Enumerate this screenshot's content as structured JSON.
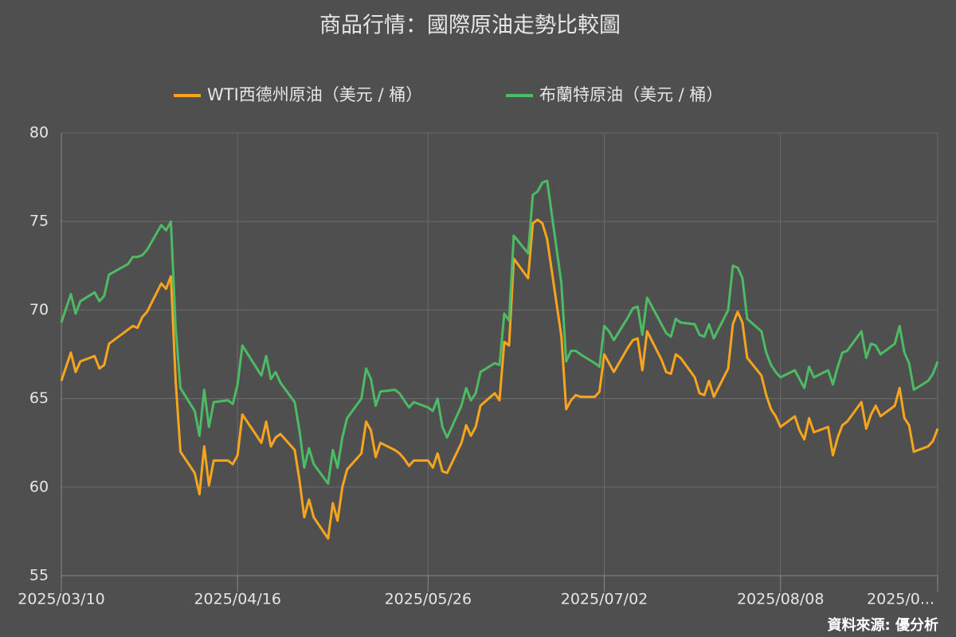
{
  "chart_data": {
    "type": "line",
    "title": "商品行情：國際原油走勢比較圖",
    "source": "資料來源: 優分析",
    "x": [
      "2025/03/10",
      "2025/03/12",
      "2025/03/13",
      "2025/03/14",
      "2025/03/17",
      "2025/03/18",
      "2025/03/19",
      "2025/03/20",
      "2025/03/24",
      "2025/03/25",
      "2025/03/26",
      "2025/03/27",
      "2025/03/28",
      "2025/03/31",
      "2025/04/01",
      "2025/04/02",
      "2025/04/03",
      "2025/04/04",
      "2025/04/07",
      "2025/04/08",
      "2025/04/09",
      "2025/04/10",
      "2025/04/11",
      "2025/04/14",
      "2025/04/15",
      "2025/04/16",
      "2025/04/17",
      "2025/04/21",
      "2025/04/22",
      "2025/04/23",
      "2025/04/24",
      "2025/04/25",
      "2025/04/28",
      "2025/04/29",
      "2025/04/30",
      "2025/05/01",
      "2025/05/02",
      "2025/05/05",
      "2025/05/06",
      "2025/05/07",
      "2025/05/08",
      "2025/05/09",
      "2025/05/12",
      "2025/05/13",
      "2025/05/14",
      "2025/05/15",
      "2025/05/16",
      "2025/05/19",
      "2025/05/20",
      "2025/05/21",
      "2025/05/22",
      "2025/05/23",
      "2025/05/26",
      "2025/05/27",
      "2025/05/28",
      "2025/05/29",
      "2025/05/30",
      "2025/06/02",
      "2025/06/03",
      "2025/06/04",
      "2025/06/05",
      "2025/06/06",
      "2025/06/09",
      "2025/06/10",
      "2025/06/11",
      "2025/06/12",
      "2025/06/13",
      "2025/06/16",
      "2025/06/17",
      "2025/06/18",
      "2025/06/19",
      "2025/06/20",
      "2025/06/23",
      "2025/06/24",
      "2025/06/25",
      "2025/06/26",
      "2025/06/27",
      "2025/06/30",
      "2025/07/01",
      "2025/07/02",
      "2025/07/03",
      "2025/07/04",
      "2025/07/07",
      "2025/07/08",
      "2025/07/09",
      "2025/07/10",
      "2025/07/11",
      "2025/07/14",
      "2025/07/15",
      "2025/07/16",
      "2025/07/17",
      "2025/07/18",
      "2025/07/21",
      "2025/07/22",
      "2025/07/23",
      "2025/07/24",
      "2025/07/25",
      "2025/07/28",
      "2025/07/29",
      "2025/07/30",
      "2025/07/31",
      "2025/08/01",
      "2025/08/04",
      "2025/08/05",
      "2025/08/06",
      "2025/08/07",
      "2025/08/08",
      "2025/08/11",
      "2025/08/12",
      "2025/08/13",
      "2025/08/14",
      "2025/08/15",
      "2025/08/18",
      "2025/08/19",
      "2025/08/20",
      "2025/08/21",
      "2025/08/22",
      "2025/08/25",
      "2025/08/26",
      "2025/08/27",
      "2025/08/28",
      "2025/08/29",
      "2025/09/01",
      "2025/09/02",
      "2025/09/03",
      "2025/09/04",
      "2025/09/05",
      "2025/09/08",
      "2025/09/09",
      "2025/09/10"
    ],
    "series": [
      {
        "name": "WTI西德州原油（美元 / 桶）",
        "color": "#f7a51c",
        "values": [
          66.0,
          67.6,
          66.5,
          67.1,
          67.4,
          66.7,
          66.9,
          68.1,
          68.9,
          69.1,
          69.0,
          69.6,
          69.9,
          71.5,
          71.2,
          71.9,
          66.0,
          62.0,
          60.8,
          59.6,
          62.3,
          60.1,
          61.5,
          61.5,
          61.3,
          61.8,
          64.1,
          62.5,
          63.7,
          62.3,
          62.8,
          63.0,
          62.1,
          60.4,
          58.3,
          59.3,
          58.3,
          57.1,
          59.1,
          58.1,
          60.0,
          61.0,
          61.9,
          63.7,
          63.2,
          61.7,
          62.5,
          62.1,
          61.9,
          61.6,
          61.2,
          61.5,
          61.5,
          61.1,
          61.9,
          60.9,
          60.8,
          62.5,
          63.5,
          62.9,
          63.4,
          64.6,
          65.3,
          64.9,
          68.2,
          68.0,
          72.9,
          71.8,
          74.9,
          75.1,
          74.9,
          74.0,
          68.5,
          64.4,
          64.9,
          65.2,
          65.1,
          65.1,
          65.4,
          67.5,
          67.0,
          66.5,
          67.9,
          68.3,
          68.4,
          66.6,
          68.8,
          67.2,
          66.5,
          66.4,
          67.5,
          67.3,
          66.2,
          65.3,
          65.2,
          66.0,
          65.1,
          66.7,
          69.2,
          69.9,
          69.3,
          67.3,
          66.3,
          65.2,
          64.4,
          64.0,
          63.4,
          64.0,
          63.2,
          62.7,
          63.9,
          63.1,
          63.4,
          61.8,
          62.8,
          63.5,
          63.7,
          64.8,
          63.3,
          64.1,
          64.6,
          64.0,
          64.6,
          65.6,
          63.9,
          63.5,
          62.0,
          62.3,
          62.6,
          63.3
        ]
      },
      {
        "name": "布蘭特原油（美元 / 桶）",
        "color": "#4cbb64",
        "values": [
          69.3,
          70.9,
          69.8,
          70.5,
          71.0,
          70.5,
          70.8,
          72.0,
          72.6,
          73.0,
          73.0,
          73.1,
          73.4,
          74.8,
          74.5,
          75.0,
          69.0,
          65.6,
          64.3,
          62.9,
          65.5,
          63.4,
          64.8,
          64.9,
          64.7,
          65.8,
          68.0,
          66.3,
          67.4,
          66.1,
          66.5,
          65.9,
          64.8,
          63.2,
          61.1,
          62.2,
          61.3,
          60.2,
          62.1,
          61.1,
          62.8,
          63.9,
          65.0,
          66.7,
          66.1,
          64.6,
          65.4,
          65.5,
          65.3,
          64.9,
          64.5,
          64.8,
          64.5,
          64.3,
          65.0,
          63.4,
          62.8,
          64.6,
          65.6,
          64.9,
          65.3,
          66.5,
          67.0,
          66.9,
          69.8,
          69.4,
          74.2,
          73.2,
          76.5,
          76.7,
          77.2,
          77.3,
          71.5,
          67.1,
          67.7,
          67.7,
          67.5,
          67.0,
          66.8,
          69.1,
          68.8,
          68.3,
          69.6,
          70.1,
          70.2,
          68.6,
          70.7,
          69.2,
          68.7,
          68.5,
          69.5,
          69.3,
          69.2,
          68.6,
          68.5,
          69.2,
          68.4,
          70.0,
          72.5,
          72.4,
          71.8,
          69.5,
          68.8,
          67.6,
          66.9,
          66.5,
          66.2,
          66.6,
          66.1,
          65.6,
          66.8,
          66.2,
          66.6,
          65.8,
          66.8,
          67.6,
          67.7,
          68.8,
          67.3,
          68.1,
          68.0,
          67.5,
          68.1,
          69.1,
          67.6,
          67.0,
          65.5,
          66.0,
          66.4,
          67.1
        ]
      }
    ],
    "xlim": [
      "2025/03/10",
      "2025/09/10"
    ],
    "xticks": [
      "2025/03/10",
      "2025/04/16",
      "2025/05/26",
      "2025/07/02",
      "2025/08/08",
      {
        "value": "2025/09/10",
        "label": "2025/0..."
      }
    ],
    "ylim": [
      55,
      80
    ],
    "yticks": [
      55,
      60,
      65,
      70,
      75,
      80
    ],
    "grid": true,
    "legend": "top"
  }
}
